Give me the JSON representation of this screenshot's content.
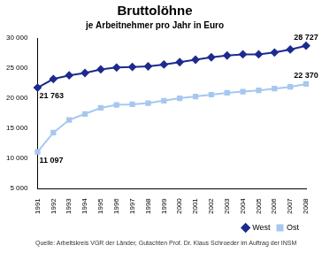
{
  "chart_data": {
    "type": "line",
    "title": "Bruttolöhne",
    "subtitle": "je Arbeitnehmer pro Jahr in Euro",
    "source": "Quelle: Arbeitskreis VGR der Länder, Gutachten Prof. Dr. Klaus Schroeder im Auftrag der INSM",
    "categories": [
      "1991",
      "1992",
      "1993",
      "1994",
      "1995",
      "1996",
      "1997",
      "1998",
      "1999",
      "2000",
      "2001",
      "2002",
      "2003",
      "2004",
      "2005",
      "2006",
      "2007",
      "2008"
    ],
    "series": [
      {
        "name": "West",
        "color": "#1c2b8f",
        "marker": "diamond",
        "values": [
          21763,
          23200,
          23800,
          24200,
          24800,
          25100,
          25200,
          25300,
          25600,
          26000,
          26400,
          26800,
          27100,
          27300,
          27300,
          27600,
          28100,
          28727
        ],
        "value_labels": [
          "21 763",
          null,
          null,
          null,
          null,
          null,
          null,
          null,
          null,
          null,
          null,
          null,
          null,
          null,
          null,
          null,
          null,
          "28 727"
        ]
      },
      {
        "name": "Ost",
        "color": "#a6c8ee",
        "marker": "square",
        "values": [
          11097,
          14300,
          16400,
          17400,
          18400,
          18900,
          19000,
          19200,
          19600,
          20000,
          20300,
          20600,
          20900,
          21100,
          21300,
          21600,
          21900,
          22370
        ],
        "value_labels": [
          "11 097",
          null,
          null,
          null,
          null,
          null,
          null,
          null,
          null,
          null,
          null,
          null,
          null,
          null,
          null,
          null,
          null,
          "22 370"
        ]
      }
    ],
    "ylim": [
      5000,
      30000
    ],
    "yticks": [
      {
        "value": 5000,
        "label": "5 000"
      },
      {
        "value": 10000,
        "label": "10 000"
      },
      {
        "value": 15000,
        "label": "15 000"
      },
      {
        "value": 20000,
        "label": "20 000"
      },
      {
        "value": 25000,
        "label": "25 000"
      },
      {
        "value": 30000,
        "label": "30 000"
      }
    ],
    "grid": false,
    "legend": "bottom-right",
    "data_labels": true
  }
}
